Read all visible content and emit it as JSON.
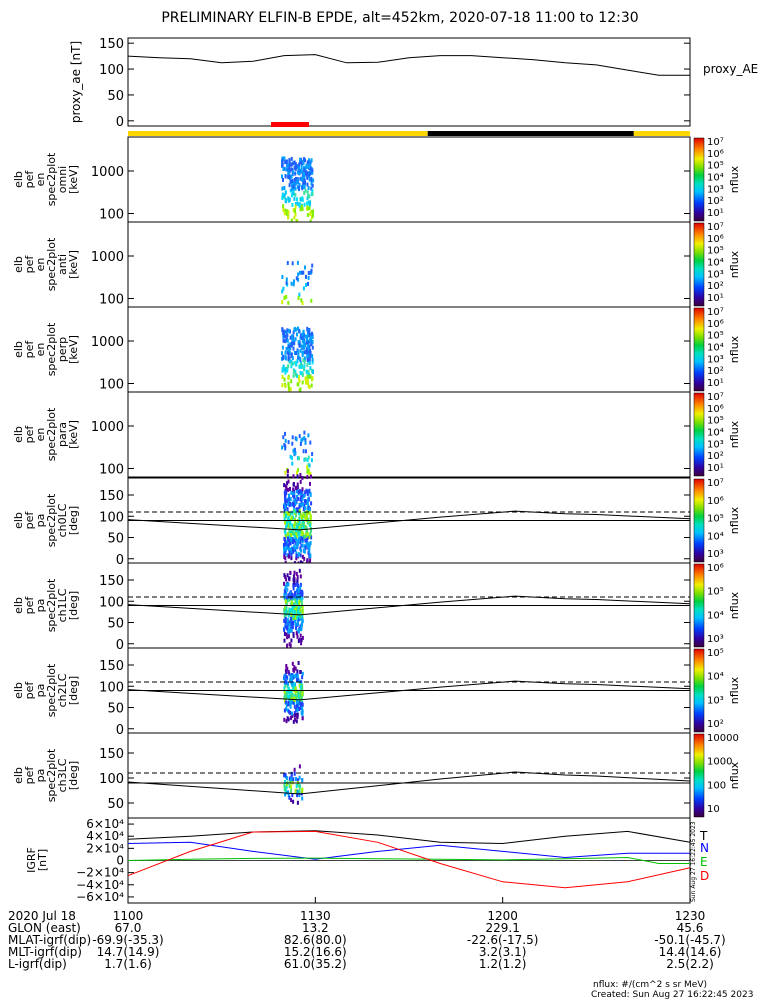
{
  "title": "PRELIMINARY ELFIN-B EPDE, alt=452km, 2020-07-18 11:00 to 12:30",
  "footer": {
    "units": "nflux: #/(cm^2 s sr MeV)",
    "created": "Created: Sun Aug 27 16:22:45 2023",
    "side_stamp": "Sun Aug 27 16:22:45 2023"
  },
  "colors": {
    "orbit_sunlit": "#ffd700",
    "orbit_shadow": "#000000",
    "science_zone": "#ff0000",
    "T": "#000000",
    "N": "#0000ff",
    "E": "#00c000",
    "D": "#ff0000"
  },
  "chart_data": [
    {
      "type": "line",
      "ylabel": "proxy_ae [nT]",
      "legend": "proxy_AE",
      "yticks": [
        "150",
        "100",
        "50",
        "0"
      ],
      "ylim": [
        -10,
        160
      ],
      "series": [
        {
          "name": "proxy_AE",
          "x": [
            0,
            5,
            10,
            15,
            20,
            25,
            30,
            35,
            40,
            45,
            50,
            55,
            60,
            65,
            70,
            75,
            80,
            85,
            90
          ],
          "y": [
            125,
            122,
            120,
            112,
            115,
            126,
            128,
            112,
            113,
            122,
            126,
            126,
            122,
            118,
            112,
            108,
            98,
            88,
            88
          ]
        }
      ],
      "orbit_bar": [
        {
          "from": 0,
          "to": 48,
          "state": "sunlit"
        },
        {
          "from": 48,
          "to": 81,
          "state": "shadow"
        },
        {
          "from": 81,
          "to": 90,
          "state": "sunlit"
        }
      ],
      "science_zone": [
        24,
        30
      ]
    },
    {
      "type": "heatmap",
      "ylabel": [
        "elb",
        "pef",
        "en",
        "spec2plot",
        "omni",
        "[keV]"
      ],
      "yticks": [
        "1000",
        "100"
      ],
      "scale": "log",
      "zlabel": "nflux",
      "zlim": [
        "10",
        "10^7"
      ],
      "burst": [
        24.5,
        29.5
      ]
    },
    {
      "type": "heatmap",
      "ylabel": [
        "elb",
        "pef",
        "en",
        "spec2plot",
        "anti",
        "[keV]"
      ],
      "yticks": [
        "1000",
        "100"
      ],
      "scale": "log",
      "zlabel": "nflux",
      "zlim": [
        "10",
        "10^7"
      ],
      "burst": [
        24.5,
        29.5
      ]
    },
    {
      "type": "heatmap",
      "ylabel": [
        "elb",
        "pef",
        "en",
        "spec2plot",
        "perp",
        "[keV]"
      ],
      "yticks": [
        "1000",
        "100"
      ],
      "scale": "log",
      "zlabel": "nflux",
      "zlim": [
        "10",
        "10^7"
      ],
      "burst": [
        24.5,
        29.5
      ]
    },
    {
      "type": "heatmap",
      "ylabel": [
        "elb",
        "pef",
        "en",
        "spec2plot",
        "para",
        "[keV]"
      ],
      "yticks": [
        "1000",
        "100"
      ],
      "scale": "log",
      "zlabel": "nflux",
      "zlim": [
        "10",
        "10^7"
      ],
      "burst": [
        24.5,
        29.5
      ]
    },
    {
      "type": "heatmap",
      "ylabel": [
        "elb",
        "pef",
        "pa",
        "spec2plot",
        "ch0LC",
        "[deg]"
      ],
      "yticks": [
        "150",
        "100",
        "50",
        "0"
      ],
      "scale": "linear",
      "zlabel": "nflux",
      "zlim": [
        "10^3",
        "10^7"
      ],
      "ylim": [
        -10,
        190
      ],
      "loss_cone_dashed": 110,
      "lines_x": [
        0,
        27.5,
        50,
        62,
        70,
        75,
        90
      ],
      "lines_y": [
        92,
        68,
        98,
        112,
        106,
        104,
        94
      ]
    },
    {
      "type": "heatmap",
      "ylabel": [
        "elb",
        "pef",
        "pa",
        "spec2plot",
        "ch1LC",
        "[deg]"
      ],
      "yticks": [
        "150",
        "100",
        "50",
        "0"
      ],
      "scale": "linear",
      "zlabel": "nflux",
      "zlim": [
        "10^3",
        "10^6"
      ],
      "ylim": [
        -10,
        190
      ],
      "loss_cone_dashed": 110,
      "lines_x": [
        0,
        27.5,
        50,
        62,
        70,
        75,
        90
      ],
      "lines_y": [
        92,
        68,
        98,
        112,
        106,
        104,
        94
      ]
    },
    {
      "type": "heatmap",
      "ylabel": [
        "elb",
        "pef",
        "pa",
        "spec2plot",
        "ch2LC",
        "[deg]"
      ],
      "yticks": [
        "150",
        "100",
        "50",
        "0"
      ],
      "scale": "linear",
      "zlabel": "nflux",
      "zlim": [
        "10^2",
        "10^5"
      ],
      "ylim": [
        -10,
        190
      ],
      "loss_cone_dashed": 110,
      "lines_x": [
        0,
        27.5,
        50,
        62,
        70,
        75,
        90
      ],
      "lines_y": [
        92,
        68,
        98,
        112,
        106,
        104,
        94
      ]
    },
    {
      "type": "heatmap",
      "ylabel": [
        "elb",
        "pef",
        "pa",
        "spec2plot",
        "ch3LC",
        "[deg]"
      ],
      "yticks": [
        "150",
        "100",
        "50"
      ],
      "scale": "linear",
      "zlabel": "nflux",
      "zticks": [
        "10000",
        "1000",
        "100",
        "10"
      ],
      "ylim": [
        20,
        190
      ],
      "loss_cone_dashed": 110,
      "lines_x": [
        0,
        27.5,
        50,
        62,
        70,
        75,
        90
      ],
      "lines_y": [
        92,
        68,
        98,
        112,
        106,
        104,
        94
      ]
    },
    {
      "type": "line",
      "ylabel": [
        "IGRF",
        "[nT]"
      ],
      "yticks": [
        "6×10⁴",
        "4×10⁴",
        "2×10⁴",
        "0",
        "−2×10⁴",
        "−4×10⁴",
        "−6×10⁴"
      ],
      "ylim": [
        -70000,
        70000
      ],
      "series": [
        {
          "name": "T",
          "x": [
            0,
            10,
            20,
            30,
            40,
            50,
            60,
            70,
            80,
            90
          ],
          "y": [
            35000,
            40000,
            47000,
            49000,
            42000,
            30000,
            28000,
            40000,
            48000,
            30000
          ]
        },
        {
          "name": "N",
          "x": [
            0,
            10,
            20,
            30,
            40,
            50,
            60,
            70,
            80,
            90
          ],
          "y": [
            28000,
            30000,
            15000,
            2000,
            15000,
            25000,
            15000,
            5000,
            12000,
            12000
          ]
        },
        {
          "name": "E",
          "x": [
            0,
            10,
            20,
            30,
            40,
            50,
            60,
            70,
            80,
            85,
            90
          ],
          "y": [
            0,
            2000,
            3500,
            4000,
            3000,
            2000,
            1000,
            3000,
            5000,
            -5000,
            -5000
          ]
        },
        {
          "name": "D",
          "x": [
            0,
            10,
            20,
            30,
            40,
            50,
            60,
            70,
            80,
            90
          ],
          "y": [
            -25000,
            15000,
            47000,
            48000,
            30000,
            -5000,
            -35000,
            -45000,
            -35000,
            -12000
          ]
        }
      ]
    }
  ],
  "xaxis": {
    "rows": [
      {
        "label": "2020 Jul 18",
        "values": [
          "1100",
          "1130",
          "1200",
          "1230"
        ]
      },
      {
        "label": "GLON (east)",
        "values": [
          "67.0",
          "13.2",
          "229.1",
          "45.6"
        ]
      },
      {
        "label": "MLAT-igrf(dip)",
        "values": [
          "-69.9(-35.3)",
          "82.6(80.0)",
          "-22.6(-17.5)",
          "-50.1(-45.7)"
        ]
      },
      {
        "label": "MLT-igrf(dip)",
        "values": [
          "14.7(14.9)",
          "15.2(16.6)",
          "3.2(3.1)",
          "14.4(14.6)"
        ]
      },
      {
        "label": "L-igrf(dip)",
        "values": [
          "1.7(1.6)",
          "61.0(35.2)",
          "1.2(1.2)",
          "2.5(2.2)"
        ]
      }
    ]
  }
}
